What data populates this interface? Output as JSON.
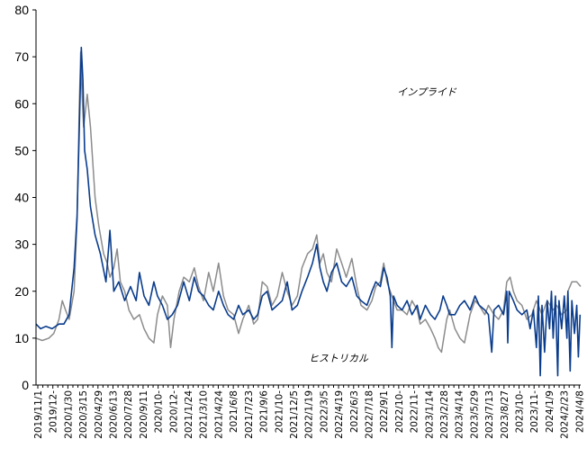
{
  "chart_data": {
    "type": "line",
    "title": "",
    "xlabel": "",
    "ylabel": "",
    "ylim": [
      0,
      80
    ],
    "yticks": [
      0,
      10,
      20,
      30,
      40,
      50,
      60,
      70,
      80
    ],
    "xlim": [
      "2019-11-01",
      "2024-05-17"
    ],
    "grid": false,
    "legend": "none",
    "x_tick_labels": [
      "2019/11/1",
      "2019/12-",
      "2020/1/30",
      "2020/3/15",
      "2020/4/29",
      "2020/6/13",
      "2020/7/28",
      "2020/9/11",
      "2020/10-",
      "2020/12-",
      "2021/1/24",
      "2021/3/10",
      "2021/4/24",
      "2021/6/8",
      "2021/7/23",
      "2021/9/6",
      "2021/10-",
      "2021/12/5",
      "2022/1/19",
      "2022/3/5",
      "2022/4/19",
      "2022/6/3",
      "2022/7/18",
      "2022/9/1",
      "2022/10-",
      "2022/11-",
      "2023/1/14",
      "2023/2/28",
      "2023/4/14",
      "2023/5/29",
      "2023/7/13",
      "2023/8/27",
      "2023/10-",
      "2023/11-",
      "2024/1/9",
      "2024/2/23",
      "2024/4/8"
    ],
    "annotations": [
      {
        "text": "インプライド",
        "series": "implied"
      },
      {
        "text": "ヒストリカル",
        "series": "historical"
      }
    ],
    "series": [
      {
        "key": "historical",
        "color": "#0a3c8c",
        "points": [
          [
            "2019-11-01",
            13
          ],
          [
            "2019-11-15",
            12
          ],
          [
            "2019-12-01",
            12.5
          ],
          [
            "2019-12-20",
            12
          ],
          [
            "2020-01-10",
            13
          ],
          [
            "2020-01-25",
            13
          ],
          [
            "2020-02-10",
            15
          ],
          [
            "2020-02-25",
            25
          ],
          [
            "2020-03-05",
            36
          ],
          [
            "2020-03-12",
            55
          ],
          [
            "2020-03-18",
            72
          ],
          [
            "2020-03-23",
            65
          ],
          [
            "2020-03-28",
            50
          ],
          [
            "2020-04-05",
            46
          ],
          [
            "2020-04-15",
            38
          ],
          [
            "2020-04-29",
            32
          ],
          [
            "2020-05-15",
            28
          ],
          [
            "2020-06-01",
            22
          ],
          [
            "2020-06-13",
            33
          ],
          [
            "2020-06-25",
            20
          ],
          [
            "2020-07-10",
            22
          ],
          [
            "2020-07-28",
            18
          ],
          [
            "2020-08-15",
            21
          ],
          [
            "2020-09-01",
            18
          ],
          [
            "2020-09-11",
            24
          ],
          [
            "2020-09-25",
            19
          ],
          [
            "2020-10-10",
            17
          ],
          [
            "2020-10-25",
            22
          ],
          [
            "2020-11-05",
            19
          ],
          [
            "2020-11-20",
            17
          ],
          [
            "2020-12-05",
            14
          ],
          [
            "2020-12-20",
            15
          ],
          [
            "2021-01-05",
            17
          ],
          [
            "2021-01-24",
            22
          ],
          [
            "2021-02-10",
            18
          ],
          [
            "2021-02-25",
            23
          ],
          [
            "2021-03-10",
            20
          ],
          [
            "2021-03-25",
            19
          ],
          [
            "2021-04-10",
            17
          ],
          [
            "2021-04-24",
            16
          ],
          [
            "2021-05-10",
            20
          ],
          [
            "2021-05-25",
            17
          ],
          [
            "2021-06-08",
            15
          ],
          [
            "2021-06-25",
            14
          ],
          [
            "2021-07-10",
            17
          ],
          [
            "2021-07-23",
            15
          ],
          [
            "2021-08-10",
            16
          ],
          [
            "2021-08-25",
            14
          ],
          [
            "2021-09-06",
            15
          ],
          [
            "2021-09-20",
            19
          ],
          [
            "2021-10-05",
            20
          ],
          [
            "2021-10-20",
            16
          ],
          [
            "2021-11-05",
            17
          ],
          [
            "2021-11-20",
            18
          ],
          [
            "2021-12-05",
            22
          ],
          [
            "2021-12-20",
            16
          ],
          [
            "2022-01-05",
            17
          ],
          [
            "2022-01-19",
            20
          ],
          [
            "2022-02-05",
            23
          ],
          [
            "2022-02-20",
            26
          ],
          [
            "2022-03-05",
            30
          ],
          [
            "2022-03-15",
            25
          ],
          [
            "2022-03-25",
            22
          ],
          [
            "2022-04-05",
            20
          ],
          [
            "2022-04-19",
            24
          ],
          [
            "2022-05-05",
            26
          ],
          [
            "2022-05-20",
            22
          ],
          [
            "2022-06-03",
            21
          ],
          [
            "2022-06-20",
            23
          ],
          [
            "2022-07-05",
            19
          ],
          [
            "2022-07-18",
            18
          ],
          [
            "2022-08-05",
            17
          ],
          [
            "2022-08-20",
            20
          ],
          [
            "2022-09-01",
            22
          ],
          [
            "2022-09-15",
            21
          ],
          [
            "2022-09-25",
            25
          ],
          [
            "2022-10-05",
            23
          ],
          [
            "2022-10-15",
            19
          ],
          [
            "2022-10-20",
            8
          ],
          [
            "2022-10-25",
            19
          ],
          [
            "2022-11-05",
            17
          ],
          [
            "2022-11-20",
            16
          ],
          [
            "2022-12-05",
            18
          ],
          [
            "2022-12-20",
            15
          ],
          [
            "2023-01-05",
            17
          ],
          [
            "2023-01-14",
            14
          ],
          [
            "2023-01-30",
            17
          ],
          [
            "2023-02-15",
            15
          ],
          [
            "2023-02-28",
            14
          ],
          [
            "2023-03-15",
            16
          ],
          [
            "2023-03-25",
            19
          ],
          [
            "2023-04-05",
            17
          ],
          [
            "2023-04-14",
            15
          ],
          [
            "2023-04-30",
            15
          ],
          [
            "2023-05-15",
            17
          ],
          [
            "2023-05-29",
            18
          ],
          [
            "2023-06-15",
            16
          ],
          [
            "2023-06-30",
            19
          ],
          [
            "2023-07-13",
            17
          ],
          [
            "2023-07-30",
            16
          ],
          [
            "2023-08-10",
            15
          ],
          [
            "2023-08-20",
            7
          ],
          [
            "2023-08-27",
            16
          ],
          [
            "2023-09-10",
            17
          ],
          [
            "2023-09-25",
            15
          ],
          [
            "2023-10-05",
            20
          ],
          [
            "2023-10-08",
            9
          ],
          [
            "2023-10-12",
            20
          ],
          [
            "2023-10-25",
            18
          ],
          [
            "2023-11-05",
            16
          ],
          [
            "2023-11-20",
            15
          ],
          [
            "2023-12-05",
            16
          ],
          [
            "2023-12-15",
            12
          ],
          [
            "2023-12-25",
            16
          ],
          [
            "2024-01-03",
            8
          ],
          [
            "2024-01-09",
            19
          ],
          [
            "2024-01-15",
            2
          ],
          [
            "2024-01-20",
            17
          ],
          [
            "2024-01-28",
            7
          ],
          [
            "2024-02-05",
            18
          ],
          [
            "2024-02-12",
            12
          ],
          [
            "2024-02-18",
            20
          ],
          [
            "2024-02-23",
            10
          ],
          [
            "2024-03-01",
            19
          ],
          [
            "2024-03-08",
            2
          ],
          [
            "2024-03-12",
            18
          ],
          [
            "2024-03-20",
            12
          ],
          [
            "2024-03-28",
            19
          ],
          [
            "2024-04-05",
            10
          ],
          [
            "2024-04-08",
            20
          ],
          [
            "2024-04-15",
            3
          ],
          [
            "2024-04-20",
            18
          ],
          [
            "2024-04-28",
            11
          ],
          [
            "2024-05-05",
            17
          ],
          [
            "2024-05-10",
            6
          ],
          [
            "2024-05-15",
            15
          ]
        ]
      },
      {
        "key": "implied",
        "color": "#8c8c8c",
        "points": [
          [
            "2019-11-01",
            10
          ],
          [
            "2019-11-20",
            9.5
          ],
          [
            "2019-12-10",
            10
          ],
          [
            "2019-12-25",
            11
          ],
          [
            "2020-01-10",
            14
          ],
          [
            "2020-01-20",
            18
          ],
          [
            "2020-01-30",
            16
          ],
          [
            "2020-02-10",
            14
          ],
          [
            "2020-02-25",
            20
          ],
          [
            "2020-03-05",
            35
          ],
          [
            "2020-03-12",
            60
          ],
          [
            "2020-03-16",
            71
          ],
          [
            "2020-03-20",
            62
          ],
          [
            "2020-03-25",
            55
          ],
          [
            "2020-04-05",
            62
          ],
          [
            "2020-04-15",
            55
          ],
          [
            "2020-04-29",
            40
          ],
          [
            "2020-05-10",
            34
          ],
          [
            "2020-05-25",
            28
          ],
          [
            "2020-06-05",
            26
          ],
          [
            "2020-06-13",
            23
          ],
          [
            "2020-06-25",
            25
          ],
          [
            "2020-07-05",
            29
          ],
          [
            "2020-07-15",
            22
          ],
          [
            "2020-07-28",
            20
          ],
          [
            "2020-08-10",
            16
          ],
          [
            "2020-08-25",
            14
          ],
          [
            "2020-09-11",
            15
          ],
          [
            "2020-09-25",
            12
          ],
          [
            "2020-10-10",
            10
          ],
          [
            "2020-10-25",
            9
          ],
          [
            "2020-11-05",
            15
          ],
          [
            "2020-11-20",
            19
          ],
          [
            "2020-12-05",
            17
          ],
          [
            "2020-12-15",
            8
          ],
          [
            "2020-12-25",
            14
          ],
          [
            "2021-01-10",
            20
          ],
          [
            "2021-01-24",
            23
          ],
          [
            "2021-02-10",
            22
          ],
          [
            "2021-02-25",
            25
          ],
          [
            "2021-03-10",
            21
          ],
          [
            "2021-03-25",
            18
          ],
          [
            "2021-04-10",
            24
          ],
          [
            "2021-04-24",
            20
          ],
          [
            "2021-05-10",
            26
          ],
          [
            "2021-05-25",
            19
          ],
          [
            "2021-06-08",
            16
          ],
          [
            "2021-06-25",
            15
          ],
          [
            "2021-07-10",
            11
          ],
          [
            "2021-07-23",
            14
          ],
          [
            "2021-08-10",
            17
          ],
          [
            "2021-08-25",
            13
          ],
          [
            "2021-09-06",
            14
          ],
          [
            "2021-09-20",
            22
          ],
          [
            "2021-10-05",
            21
          ],
          [
            "2021-10-20",
            17
          ],
          [
            "2021-11-05",
            19
          ],
          [
            "2021-11-20",
            24
          ],
          [
            "2021-12-05",
            20
          ],
          [
            "2021-12-20",
            17
          ],
          [
            "2022-01-05",
            19
          ],
          [
            "2022-01-19",
            25
          ],
          [
            "2022-02-05",
            28
          ],
          [
            "2022-02-20",
            29
          ],
          [
            "2022-03-05",
            32
          ],
          [
            "2022-03-15",
            26
          ],
          [
            "2022-03-25",
            28
          ],
          [
            "2022-04-05",
            24
          ],
          [
            "2022-04-19",
            22
          ],
          [
            "2022-05-05",
            29
          ],
          [
            "2022-05-20",
            26
          ],
          [
            "2022-06-03",
            23
          ],
          [
            "2022-06-20",
            27
          ],
          [
            "2022-07-05",
            21
          ],
          [
            "2022-07-18",
            17
          ],
          [
            "2022-08-05",
            16
          ],
          [
            "2022-08-20",
            18
          ],
          [
            "2022-09-01",
            21
          ],
          [
            "2022-09-15",
            22
          ],
          [
            "2022-09-25",
            26
          ],
          [
            "2022-10-05",
            22
          ],
          [
            "2022-10-20",
            19
          ],
          [
            "2022-11-05",
            16
          ],
          [
            "2022-11-20",
            16
          ],
          [
            "2022-12-05",
            15
          ],
          [
            "2022-12-20",
            18
          ],
          [
            "2023-01-05",
            16
          ],
          [
            "2023-01-14",
            13
          ],
          [
            "2023-01-30",
            14
          ],
          [
            "2023-02-15",
            12
          ],
          [
            "2023-02-28",
            10
          ],
          [
            "2023-03-10",
            8
          ],
          [
            "2023-03-20",
            7
          ],
          [
            "2023-04-05",
            14
          ],
          [
            "2023-04-14",
            16
          ],
          [
            "2023-04-30",
            12
          ],
          [
            "2023-05-15",
            10
          ],
          [
            "2023-05-29",
            9
          ],
          [
            "2023-06-15",
            15
          ],
          [
            "2023-06-30",
            18
          ],
          [
            "2023-07-13",
            17
          ],
          [
            "2023-07-30",
            15
          ],
          [
            "2023-08-10",
            17
          ],
          [
            "2023-08-27",
            15
          ],
          [
            "2023-09-10",
            14
          ],
          [
            "2023-09-25",
            16
          ],
          [
            "2023-10-05",
            22
          ],
          [
            "2023-10-15",
            23
          ],
          [
            "2023-10-25",
            20
          ],
          [
            "2023-11-05",
            18
          ],
          [
            "2023-11-20",
            17
          ],
          [
            "2023-12-05",
            14
          ],
          [
            "2023-12-20",
            15
          ],
          [
            "2024-01-03",
            18
          ],
          [
            "2024-01-09",
            17
          ],
          [
            "2024-01-20",
            15
          ],
          [
            "2024-02-05",
            18
          ],
          [
            "2024-02-23",
            16
          ],
          [
            "2024-03-05",
            17
          ],
          [
            "2024-03-20",
            15
          ],
          [
            "2024-04-05",
            16
          ],
          [
            "2024-04-08",
            20
          ],
          [
            "2024-04-20",
            22
          ],
          [
            "2024-05-05",
            22
          ],
          [
            "2024-05-17",
            21
          ]
        ]
      }
    ]
  }
}
